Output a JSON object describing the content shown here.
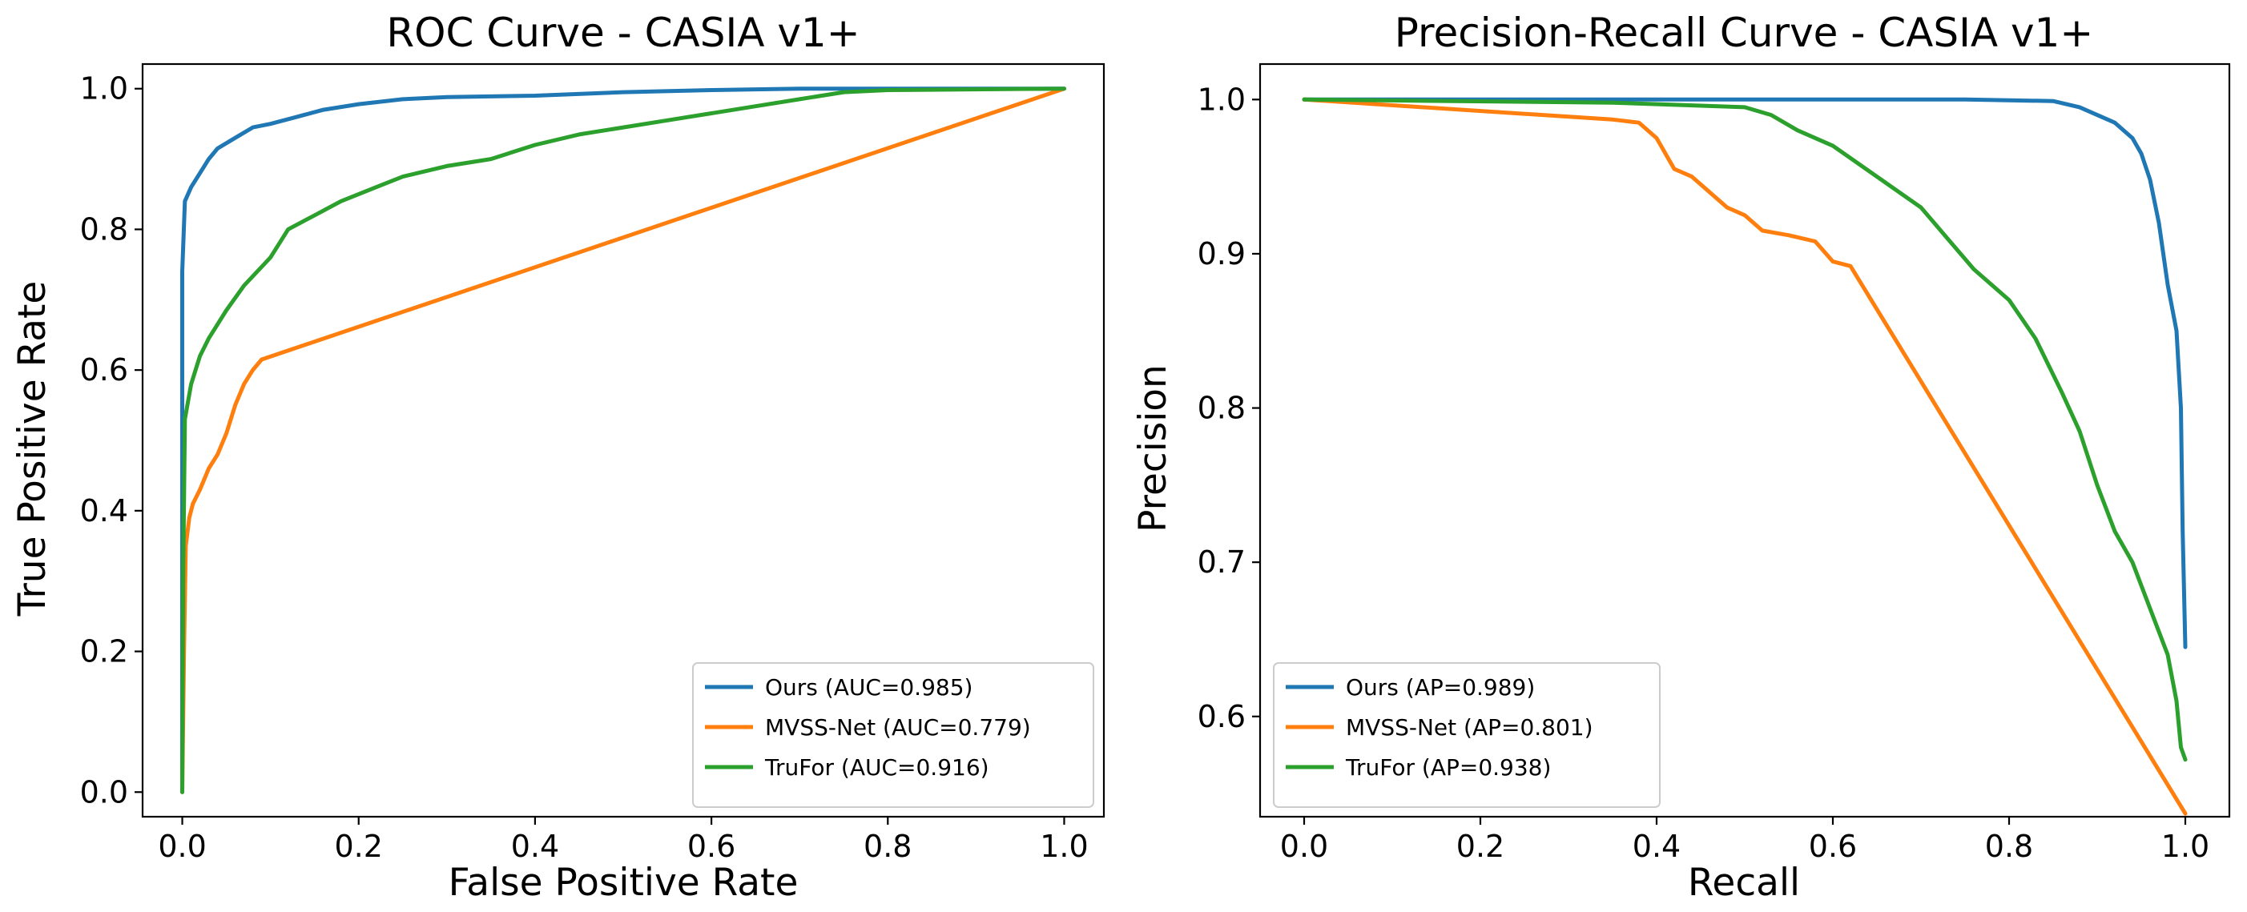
{
  "chart_data": [
    {
      "type": "line",
      "title": "ROC Curve - CASIA v1+",
      "xlabel": "False Positive Rate",
      "ylabel": "True Positive Rate",
      "xlim": [
        -0.045,
        1.045
      ],
      "ylim": [
        -0.035,
        1.035
      ],
      "xticks": [
        0.0,
        0.2,
        0.4,
        0.6,
        0.8,
        1.0
      ],
      "xtick_labels": [
        "0.0",
        "0.2",
        "0.4",
        "0.6",
        "0.8",
        "1.0"
      ],
      "yticks": [
        0.0,
        0.2,
        0.4,
        0.6,
        0.8,
        1.0
      ],
      "ytick_labels": [
        "0.0",
        "0.2",
        "0.4",
        "0.6",
        "0.8",
        "1.0"
      ],
      "legend_position": "lower-right",
      "series": [
        {
          "name": "Ours (AUC=0.985)",
          "color": "#1f77b4",
          "points": [
            [
              0,
              0
            ],
            [
              0,
              0.74
            ],
            [
              0.003,
              0.84
            ],
            [
              0.01,
              0.86
            ],
            [
              0.02,
              0.88
            ],
            [
              0.03,
              0.9
            ],
            [
              0.04,
              0.915
            ],
            [
              0.06,
              0.93
            ],
            [
              0.08,
              0.945
            ],
            [
              0.1,
              0.95
            ],
            [
              0.13,
              0.96
            ],
            [
              0.16,
              0.97
            ],
            [
              0.2,
              0.978
            ],
            [
              0.25,
              0.985
            ],
            [
              0.3,
              0.988
            ],
            [
              0.4,
              0.99
            ],
            [
              0.5,
              0.995
            ],
            [
              0.6,
              0.998
            ],
            [
              0.7,
              1.0
            ],
            [
              0.85,
              1.0
            ],
            [
              1.0,
              1.0
            ]
          ]
        },
        {
          "name": "MVSS-Net (AUC=0.779)",
          "color": "#ff7f0e",
          "points": [
            [
              0,
              0
            ],
            [
              0.002,
              0.2
            ],
            [
              0.004,
              0.35
            ],
            [
              0.008,
              0.39
            ],
            [
              0.012,
              0.41
            ],
            [
              0.02,
              0.43
            ],
            [
              0.03,
              0.46
            ],
            [
              0.04,
              0.48
            ],
            [
              0.05,
              0.51
            ],
            [
              0.06,
              0.55
            ],
            [
              0.07,
              0.58
            ],
            [
              0.08,
              0.6
            ],
            [
              0.09,
              0.615
            ],
            [
              1.0,
              1.0
            ]
          ]
        },
        {
          "name": "TruFor (AUC=0.916)",
          "color": "#2ca02c",
          "points": [
            [
              0,
              0
            ],
            [
              0.001,
              0.3
            ],
            [
              0.003,
              0.53
            ],
            [
              0.01,
              0.58
            ],
            [
              0.02,
              0.62
            ],
            [
              0.03,
              0.645
            ],
            [
              0.05,
              0.685
            ],
            [
              0.07,
              0.72
            ],
            [
              0.1,
              0.76
            ],
            [
              0.12,
              0.8
            ],
            [
              0.15,
              0.82
            ],
            [
              0.18,
              0.84
            ],
            [
              0.22,
              0.86
            ],
            [
              0.25,
              0.875
            ],
            [
              0.3,
              0.89
            ],
            [
              0.35,
              0.9
            ],
            [
              0.4,
              0.92
            ],
            [
              0.45,
              0.935
            ],
            [
              0.5,
              0.945
            ],
            [
              0.55,
              0.955
            ],
            [
              0.6,
              0.965
            ],
            [
              0.65,
              0.975
            ],
            [
              0.7,
              0.985
            ],
            [
              0.75,
              0.995
            ],
            [
              0.8,
              0.998
            ],
            [
              1.0,
              1.0
            ]
          ]
        }
      ]
    },
    {
      "type": "line",
      "title": "Precision-Recall Curve - CASIA v1+",
      "xlabel": "Recall",
      "ylabel": "Precision",
      "xlim": [
        -0.05,
        1.05
      ],
      "ylim": [
        0.535,
        1.023
      ],
      "xticks": [
        0.0,
        0.2,
        0.4,
        0.6,
        0.8,
        1.0
      ],
      "xtick_labels": [
        "0.0",
        "0.2",
        "0.4",
        "0.6",
        "0.8",
        "1.0"
      ],
      "yticks": [
        0.6,
        0.7,
        0.8,
        0.9,
        1.0
      ],
      "ytick_labels": [
        "0.6",
        "0.7",
        "0.8",
        "0.9",
        "1.0"
      ],
      "legend_position": "lower-left",
      "series": [
        {
          "name": "Ours (AP=0.989)",
          "color": "#1f77b4",
          "points": [
            [
              0,
              1.0
            ],
            [
              0.2,
              1.0
            ],
            [
              0.5,
              1.0
            ],
            [
              0.75,
              1.0
            ],
            [
              0.85,
              0.999
            ],
            [
              0.88,
              0.995
            ],
            [
              0.9,
              0.99
            ],
            [
              0.92,
              0.985
            ],
            [
              0.94,
              0.975
            ],
            [
              0.95,
              0.965
            ],
            [
              0.96,
              0.948
            ],
            [
              0.97,
              0.92
            ],
            [
              0.98,
              0.88
            ],
            [
              0.99,
              0.85
            ],
            [
              0.995,
              0.8
            ],
            [
              0.997,
              0.72
            ],
            [
              1.0,
              0.645
            ]
          ]
        },
        {
          "name": "MVSS-Net (AP=0.801)",
          "color": "#ff7f0e",
          "points": [
            [
              0,
              1.0
            ],
            [
              0.35,
              0.987
            ],
            [
              0.38,
              0.985
            ],
            [
              0.4,
              0.975
            ],
            [
              0.42,
              0.955
            ],
            [
              0.44,
              0.95
            ],
            [
              0.46,
              0.94
            ],
            [
              0.48,
              0.93
            ],
            [
              0.5,
              0.925
            ],
            [
              0.52,
              0.915
            ],
            [
              0.55,
              0.912
            ],
            [
              0.58,
              0.908
            ],
            [
              0.6,
              0.895
            ],
            [
              0.62,
              0.892
            ],
            [
              1.0,
              0.537
            ]
          ]
        },
        {
          "name": "TruFor (AP=0.938)",
          "color": "#2ca02c",
          "points": [
            [
              0,
              1.0
            ],
            [
              0.35,
              0.998
            ],
            [
              0.5,
              0.995
            ],
            [
              0.53,
              0.99
            ],
            [
              0.56,
              0.98
            ],
            [
              0.6,
              0.97
            ],
            [
              0.65,
              0.95
            ],
            [
              0.7,
              0.93
            ],
            [
              0.73,
              0.91
            ],
            [
              0.76,
              0.89
            ],
            [
              0.8,
              0.87
            ],
            [
              0.83,
              0.845
            ],
            [
              0.86,
              0.81
            ],
            [
              0.88,
              0.785
            ],
            [
              0.9,
              0.75
            ],
            [
              0.92,
              0.72
            ],
            [
              0.94,
              0.7
            ],
            [
              0.96,
              0.67
            ],
            [
              0.98,
              0.64
            ],
            [
              0.99,
              0.61
            ],
            [
              0.995,
              0.58
            ],
            [
              1.0,
              0.572
            ]
          ]
        }
      ]
    }
  ]
}
